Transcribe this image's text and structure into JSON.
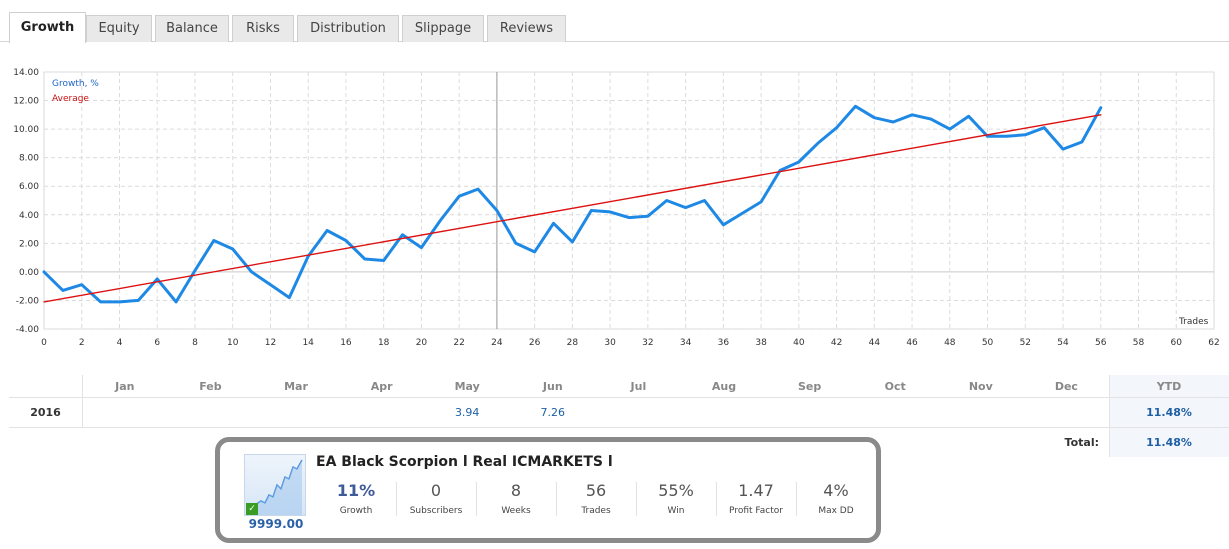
{
  "tabs": [
    {
      "label": "Growth",
      "active": true
    },
    {
      "label": "Equity",
      "active": false
    },
    {
      "label": "Balance",
      "active": false
    },
    {
      "label": "Risks",
      "active": false
    },
    {
      "label": "Distribution",
      "active": false
    },
    {
      "label": "Slippage",
      "active": false
    },
    {
      "label": "Reviews",
      "active": false
    }
  ],
  "chart_data": {
    "type": "line",
    "xlabel": "Trades",
    "ylabel": "",
    "xlim": [
      0,
      62
    ],
    "ylim": [
      -4,
      14
    ],
    "x_ticks": [
      0,
      2,
      4,
      6,
      8,
      10,
      12,
      14,
      16,
      18,
      20,
      22,
      24,
      26,
      28,
      30,
      32,
      34,
      36,
      38,
      40,
      42,
      44,
      46,
      48,
      50,
      52,
      54,
      56,
      58,
      60,
      62
    ],
    "y_ticks": [
      "14.00",
      "12.00",
      "10.00",
      "8.00",
      "6.00",
      "4.00",
      "2.00",
      "0.00",
      "-2.00",
      "-4.00"
    ],
    "grid": true,
    "legend_position": "top-left",
    "crosshair_x": 24,
    "series": [
      {
        "name": "Growth, %",
        "color": "#1e88e5",
        "x": [
          0,
          1,
          2,
          3,
          4,
          5,
          6,
          7,
          8,
          9,
          10,
          11,
          12,
          13,
          14,
          15,
          16,
          17,
          18,
          19,
          20,
          21,
          22,
          23,
          24,
          25,
          26,
          27,
          28,
          29,
          30,
          31,
          32,
          33,
          34,
          35,
          36,
          37,
          38,
          39,
          40,
          41,
          42,
          43,
          44,
          45,
          46,
          47,
          48,
          49,
          50,
          51,
          52,
          53,
          54,
          55,
          56
        ],
        "values": [
          0.0,
          -1.3,
          -0.9,
          -2.1,
          -2.1,
          -2.0,
          -0.5,
          -2.1,
          0.1,
          2.2,
          1.6,
          0.0,
          -0.9,
          -1.8,
          1.1,
          2.9,
          2.2,
          0.9,
          0.8,
          2.6,
          1.7,
          3.6,
          5.3,
          5.8,
          4.3,
          2.0,
          1.4,
          3.4,
          2.1,
          4.3,
          4.2,
          3.8,
          3.9,
          5.0,
          4.5,
          5.0,
          3.3,
          4.1,
          4.9,
          7.1,
          7.7,
          9.0,
          10.1,
          11.6,
          10.8,
          10.5,
          11.0,
          10.7,
          10.0,
          10.9,
          9.5,
          9.5,
          9.6,
          10.1,
          8.6,
          9.1,
          11.5
        ]
      },
      {
        "name": "Average",
        "color": "#dd1111",
        "x": [
          0,
          56
        ],
        "values": [
          -2.1,
          11.0
        ]
      }
    ]
  },
  "monthly": {
    "months": [
      "Jan",
      "Feb",
      "Mar",
      "Apr",
      "May",
      "Jun",
      "Jul",
      "Aug",
      "Sep",
      "Oct",
      "Nov",
      "Dec"
    ],
    "ytd_header": "YTD",
    "year": "2016",
    "values": [
      "",
      "",
      "",
      "",
      "3.94",
      "7.26",
      "",
      "",
      "",
      "",
      "",
      ""
    ],
    "ytd": "11.48%",
    "total_label": "Total:",
    "total": "11.48%"
  },
  "signal": {
    "title": "EA Black Scorpion l Real ICMARKETS l",
    "price": "9999.00",
    "stats": [
      {
        "value": "11%",
        "label": "Growth"
      },
      {
        "value": "0",
        "label": "Subscribers"
      },
      {
        "value": "8",
        "label": "Weeks"
      },
      {
        "value": "56",
        "label": "Trades"
      },
      {
        "value": "55%",
        "label": "Win"
      },
      {
        "value": "1.47",
        "label": "Profit Factor"
      },
      {
        "value": "4%",
        "label": "Max DD"
      }
    ]
  }
}
